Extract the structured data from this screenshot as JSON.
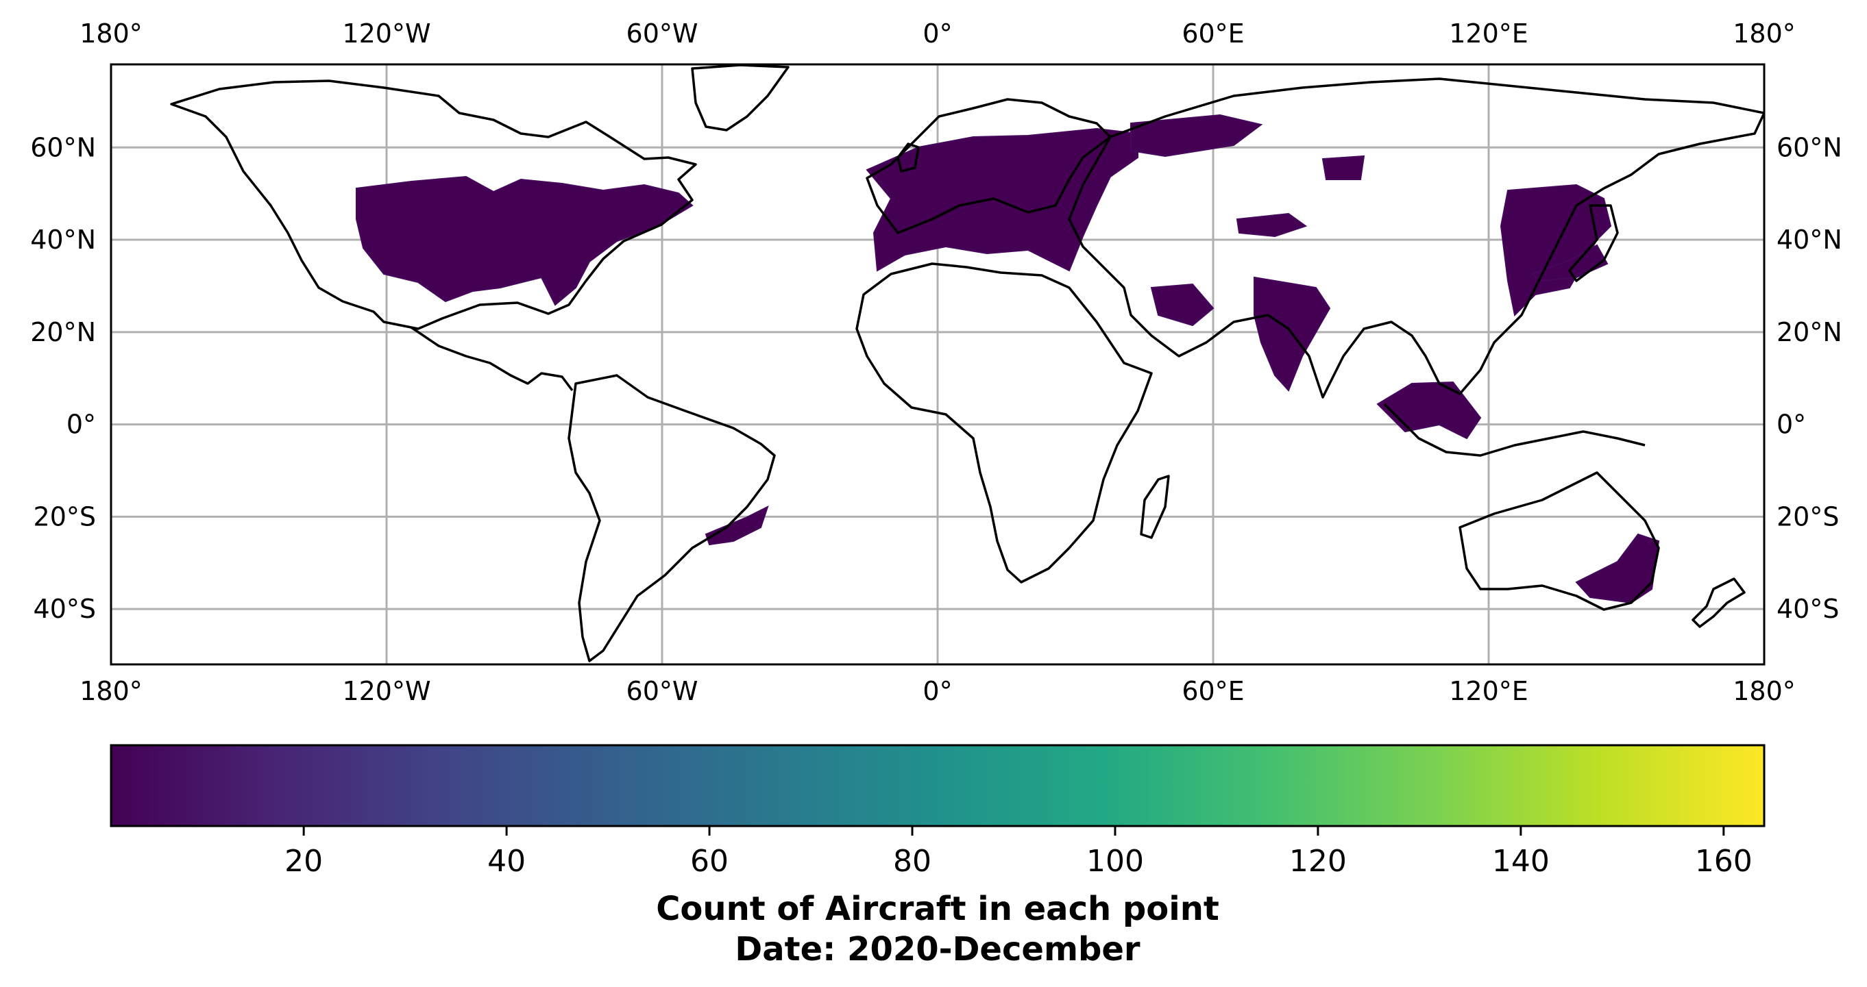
{
  "map": {
    "projection": "PlateCarree",
    "lon_range": [
      -180,
      180
    ],
    "lat_range": [
      -52,
      78
    ],
    "gridlines": true,
    "lon_ticks": [
      {
        "value": -180,
        "label": "180°"
      },
      {
        "value": -120,
        "label": "120°W"
      },
      {
        "value": -60,
        "label": "60°W"
      },
      {
        "value": 0,
        "label": "0°"
      },
      {
        "value": 60,
        "label": "60°E"
      },
      {
        "value": 120,
        "label": "120°E"
      },
      {
        "value": 180,
        "label": "180°"
      }
    ],
    "lat_ticks": [
      {
        "value": 60,
        "label": "60°N"
      },
      {
        "value": 40,
        "label": "40°N"
      },
      {
        "value": 20,
        "label": "20°N"
      },
      {
        "value": 0,
        "label": "0°"
      },
      {
        "value": -20,
        "label": "20°S"
      },
      {
        "value": -40,
        "label": "40°S"
      }
    ],
    "data_color": "#440154",
    "coastline_color": "#000000",
    "grid_color": "#b0b0b0"
  },
  "colorbar": {
    "colormap": "viridis",
    "min": 1,
    "max": 164,
    "orientation": "horizontal",
    "ticks": [
      20,
      40,
      60,
      80,
      100,
      120,
      140,
      160
    ],
    "tick_labels": [
      "20",
      "40",
      "60",
      "80",
      "100",
      "120",
      "140",
      "160"
    ],
    "label_line1": "Count of Aircraft in each point",
    "label_line2": "Date: 2020-December"
  }
}
